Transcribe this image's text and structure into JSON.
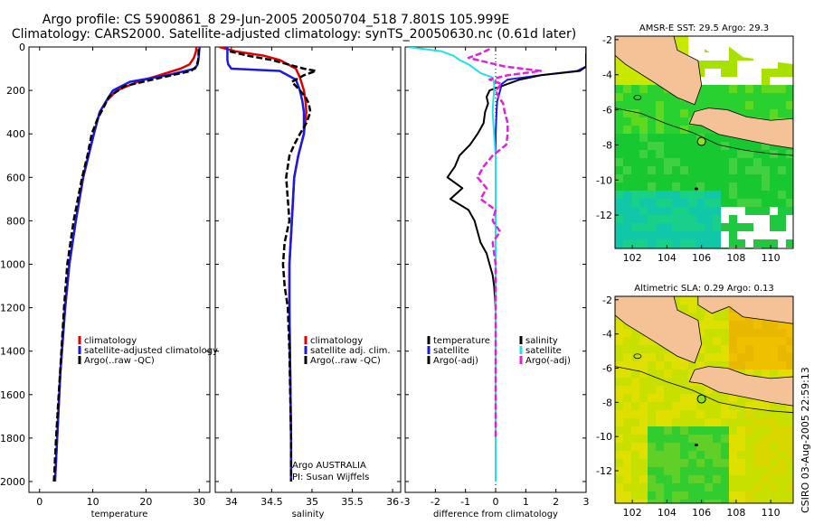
{
  "header": {
    "title_line1": "Argo profile: CS 5900861_8 29-Jun-2005 20050704_518 7.801S 105.999E",
    "title_line2": "Climatology: CARS2000. Satellite-adjusted climatology: synTS_20050630.nc (0.61d later)"
  },
  "colors": {
    "climatology": "#e00000",
    "satellite": "#1a1ae6",
    "argo": "#000000",
    "salinity_sat": "#22e0e8",
    "salinity_argo": "#e020e0",
    "land": "#f4c296",
    "sea_green": "#18c828",
    "sea_yellow": "#e8e000",
    "sea_teal": "#10c8a0"
  },
  "chart_data": [
    {
      "type": "line",
      "xlabel": "temperature",
      "xlim": [
        -2,
        32
      ],
      "ylim": [
        2050,
        0
      ],
      "xticks": [
        0,
        10,
        20,
        30
      ],
      "yticks": [
        0,
        200,
        400,
        600,
        800,
        1000,
        1200,
        1400,
        1600,
        1800,
        2000
      ],
      "legend": [
        "climatology",
        "satellite-adjusted climatology",
        "Argo(..raw -QC)"
      ],
      "series": [
        {
          "name": "climatology",
          "depth": [
            0,
            20,
            50,
            80,
            100,
            130,
            160,
            200,
            250,
            300,
            400,
            500,
            600,
            800,
            1000,
            1200,
            1500,
            1800,
            2000
          ],
          "values": [
            29.5,
            29.4,
            29.0,
            28.2,
            26.5,
            22.5,
            18.5,
            14.5,
            12.5,
            11.3,
            10.2,
            9.2,
            8.2,
            6.8,
            5.6,
            4.8,
            3.9,
            3.3,
            2.9
          ]
        },
        {
          "name": "satellite-adjusted climatology",
          "depth": [
            0,
            20,
            50,
            80,
            100,
            130,
            160,
            200,
            250,
            300,
            400,
            500,
            600,
            800,
            1000,
            1200,
            1500,
            1800,
            2000
          ],
          "values": [
            30.1,
            30.0,
            29.9,
            29.7,
            29.2,
            24.0,
            17.0,
            13.8,
            12.5,
            11.3,
            10.2,
            9.2,
            8.2,
            6.8,
            5.6,
            4.8,
            3.9,
            3.3,
            2.9
          ]
        },
        {
          "name": "Argo(..raw -QC)",
          "depth": [
            10,
            30,
            60,
            90,
            110,
            140,
            180,
            230,
            280,
            330,
            400,
            500,
            600,
            700,
            800,
            900,
            1000,
            1200,
            1400,
            1600,
            1800,
            2000
          ],
          "values": [
            29.9,
            29.9,
            29.8,
            29.5,
            28.5,
            23.0,
            16.0,
            13.0,
            12.0,
            10.9,
            9.8,
            9.0,
            8.0,
            7.2,
            6.4,
            5.8,
            5.2,
            4.6,
            4.1,
            3.6,
            3.1,
            2.7
          ]
        }
      ]
    },
    {
      "type": "line",
      "xlabel": "salinity",
      "xlim": [
        33.8,
        36.1
      ],
      "ylim": [
        2050,
        0
      ],
      "xticks": [
        34,
        34.5,
        35,
        35.5,
        36
      ],
      "legend": [
        "climatology",
        "satellite adj. clim.",
        "Argo(..raw -QC)"
      ],
      "annotations": [
        "Argo AUSTRALIA",
        "PI: Susan Wijffels"
      ],
      "series": [
        {
          "name": "climatology",
          "depth": [
            0,
            20,
            40,
            60,
            80,
            100,
            140,
            200,
            250,
            300,
            400,
            500,
            600,
            800,
            1000,
            1200,
            1500,
            1800,
            2000
          ],
          "values": [
            33.85,
            34.05,
            34.4,
            34.6,
            34.7,
            34.8,
            34.85,
            34.9,
            34.92,
            34.93,
            34.9,
            34.83,
            34.78,
            34.75,
            34.72,
            34.72,
            34.73,
            34.74,
            34.74
          ]
        },
        {
          "name": "satellite adj. clim.",
          "depth": [
            0,
            30,
            60,
            80,
            100,
            110,
            150,
            200,
            250,
            300,
            400,
            500,
            600,
            800,
            1000,
            1200,
            1500,
            1800,
            2000
          ],
          "values": [
            33.95,
            33.95,
            33.95,
            33.96,
            34.0,
            34.6,
            34.8,
            34.85,
            34.88,
            34.9,
            34.9,
            34.83,
            34.78,
            34.75,
            34.72,
            34.72,
            34.73,
            34.74,
            34.74
          ]
        },
        {
          "name": "Argo(..raw -QC)",
          "depth": [
            20,
            40,
            60,
            80,
            100,
            110,
            130,
            160,
            200,
            230,
            260,
            300,
            350,
            400,
            450,
            500,
            600,
            700,
            800,
            900,
            1000,
            1100,
            1200,
            1400,
            1600,
            1800,
            2000
          ],
          "values": [
            33.98,
            34.2,
            34.5,
            34.7,
            34.9,
            35.05,
            34.9,
            34.75,
            34.85,
            34.92,
            34.96,
            34.98,
            34.93,
            34.85,
            34.78,
            34.72,
            34.68,
            34.7,
            34.72,
            34.66,
            34.64,
            34.66,
            34.7,
            34.72,
            34.73,
            34.74,
            34.74
          ]
        }
      ]
    },
    {
      "type": "line",
      "xlabel": "difference from climatology",
      "xlim": [
        -3,
        3
      ],
      "ylim": [
        2050,
        0
      ],
      "xticks": [
        -3,
        -2,
        -1,
        0,
        1,
        2,
        3
      ],
      "legend_left": [
        "temperature",
        "satellite",
        "Argo(-adj)"
      ],
      "legend_right": [
        "salinity",
        "satellite",
        "Argo(-adj)"
      ],
      "series": [
        {
          "name": "satellite",
          "depth": [
            0,
            30,
            60,
            90,
            110,
            130,
            150,
            170,
            200,
            250,
            300,
            400,
            500,
            600,
            800,
            1000,
            1500,
            2000
          ],
          "values": [
            3.0,
            3.0,
            3.0,
            3.0,
            2.7,
            1.5,
            0.4,
            0.2,
            0.15,
            0.05,
            0.03,
            0,
            0,
            0,
            0,
            0,
            0,
            0
          ]
        },
        {
          "name": "Argo(-adj)",
          "depth": [
            30,
            60,
            90,
            110,
            130,
            150,
            180,
            200,
            230,
            260,
            300,
            350,
            400,
            450,
            500,
            550,
            600,
            650,
            700,
            750,
            800,
            850,
            900,
            950,
            1000,
            1050,
            1100,
            1200,
            1300,
            1400,
            1500,
            1600,
            1700,
            1800,
            1900,
            2000
          ],
          "values": [
            3.0,
            3.0,
            3.0,
            2.8,
            1.5,
            0.8,
            0.2,
            -0.2,
            -0.3,
            -0.25,
            -0.35,
            -0.4,
            -0.6,
            -0.85,
            -1.2,
            -1.35,
            -1.6,
            -1.1,
            -1.5,
            -0.9,
            -0.7,
            -0.6,
            -0.5,
            -0.3,
            -0.2,
            -0.1,
            -0.05,
            0,
            0,
            0,
            0,
            0,
            0,
            0,
            0,
            0
          ]
        },
        {
          "name": "salinity satellite",
          "depth": [
            0,
            20,
            40,
            60,
            80,
            100,
            120,
            140,
            170,
            200,
            250,
            300,
            400,
            500,
            600,
            800,
            1000,
            1200,
            1500,
            2000
          ],
          "values": [
            -2.9,
            -1.8,
            -1.4,
            -1.2,
            -0.9,
            -0.7,
            -0.5,
            -0.1,
            -0.05,
            -0.05,
            -0.08,
            -0.1,
            -0.05,
            0,
            0,
            0,
            0,
            0,
            0,
            0
          ]
        },
        {
          "name": "salinity Argo(-adj)",
          "depth": [
            10,
            30,
            50,
            70,
            90,
            110,
            130,
            150,
            170,
            200,
            230,
            260,
            300,
            350,
            400,
            450,
            500,
            550,
            600,
            650,
            700,
            750,
            800,
            850,
            900,
            1000,
            1100,
            1200,
            1300,
            1400,
            1500,
            1600,
            1700,
            1800
          ],
          "values": [
            -0.2,
            -0.5,
            -0.9,
            -0.3,
            0.3,
            1.5,
            0.4,
            -0.2,
            0.2,
            0.0,
            0.1,
            0.25,
            0.3,
            0.4,
            0.4,
            0.35,
            -0.1,
            -0.4,
            -0.6,
            -0.3,
            -0.5,
            0.0,
            -0.1,
            0.15,
            -0.1,
            0.0,
            0.0,
            0.0,
            0.0,
            0.0,
            0.0,
            0.0,
            0.0,
            0.0
          ]
        }
      ]
    }
  ],
  "maps": [
    {
      "title": "AMSR-E SST: 29.5 Argo: 29.3",
      "xticks": [
        "102",
        "104",
        "106",
        "108",
        "110"
      ],
      "yticks": [
        "-2",
        "-4",
        "-6",
        "-8",
        "-10",
        "-12"
      ],
      "xlim": [
        101,
        111.3
      ],
      "ylim": [
        -13.9,
        -1.8
      ]
    },
    {
      "title": "Altimetric SLA: 0.29 Argo: 0.13",
      "xticks": [
        "102",
        "104",
        "106",
        "108",
        "110"
      ],
      "yticks": [
        "-2",
        "-4",
        "-6",
        "-8",
        "-10",
        "-12"
      ],
      "xlim": [
        101,
        111.3
      ],
      "ylim": [
        -13.9,
        -1.8
      ]
    }
  ],
  "argo_position": {
    "lon": 105.999,
    "lat": -7.801
  },
  "footer": {
    "timestamp": "CSIRO 03-Aug-2005 22:59:13"
  }
}
